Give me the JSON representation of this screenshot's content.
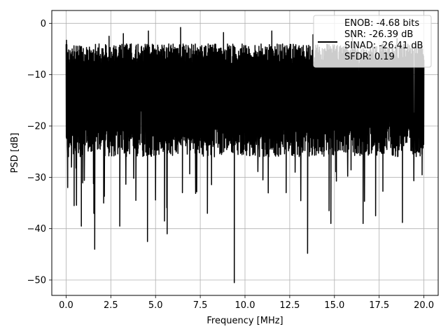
{
  "chart_data": {
    "type": "line",
    "xlabel": "Frequency [MHz]",
    "ylabel": "PSD [dB]",
    "xlim": [
      -0.8,
      20.8
    ],
    "ylim": [
      -53,
      2.5
    ],
    "xticks": [
      0.0,
      2.5,
      5.0,
      7.5,
      10.0,
      12.5,
      15.0,
      17.5,
      20.0
    ],
    "xtick_labels": [
      "0.0",
      "2.5",
      "5.0",
      "7.5",
      "10.0",
      "12.5",
      "15.0",
      "17.5",
      "20.0"
    ],
    "yticks": [
      0,
      -10,
      -20,
      -30,
      -40,
      -50
    ],
    "ytick_labels": [
      "0",
      "−10",
      "−20",
      "−30",
      "−40",
      "−50"
    ],
    "grid": true,
    "legend_position": "top-right",
    "legend_lines": [
      "ENOB: -4.68 bits",
      "SNR: -26.39 dB",
      "SINAD: -26.41 dB",
      "SFDR: 0.19"
    ],
    "series": [
      {
        "color": "#000000",
        "description": "dense noise PSD spectrum, values mostly between -25 and -5 dB",
        "x_range": [
          0.0,
          20.0
        ],
        "band_upper": -4,
        "band_lower": -26,
        "peaks": [
          {
            "x": 0.02,
            "y": -3.3
          },
          {
            "x": 2.4,
            "y": -2.5
          },
          {
            "x": 3.2,
            "y": -2.0
          },
          {
            "x": 4.6,
            "y": -1.5
          },
          {
            "x": 6.4,
            "y": -0.8
          },
          {
            "x": 8.8,
            "y": -1.8
          },
          {
            "x": 11.5,
            "y": -1.5
          },
          {
            "x": 13.8,
            "y": -2.2
          },
          {
            "x": 16.0,
            "y": -2.5
          },
          {
            "x": 18.5,
            "y": -3.0
          }
        ],
        "dips": [
          {
            "x": 0.3,
            "y": -28
          },
          {
            "x": 0.45,
            "y": -35.5
          },
          {
            "x": 0.85,
            "y": -39.5
          },
          {
            "x": 1.55,
            "y": -37
          },
          {
            "x": 1.6,
            "y": -44
          },
          {
            "x": 2.1,
            "y": -35
          },
          {
            "x": 3.0,
            "y": -39.5
          },
          {
            "x": 3.9,
            "y": -34.5
          },
          {
            "x": 4.55,
            "y": -42.5
          },
          {
            "x": 5.5,
            "y": -38.5
          },
          {
            "x": 5.65,
            "y": -41
          },
          {
            "x": 6.5,
            "y": -33
          },
          {
            "x": 7.9,
            "y": -37
          },
          {
            "x": 9.4,
            "y": -50.5
          },
          {
            "x": 11.0,
            "y": -30.5
          },
          {
            "x": 12.3,
            "y": -33
          },
          {
            "x": 12.8,
            "y": -29
          },
          {
            "x": 13.5,
            "y": -44.8
          },
          {
            "x": 14.7,
            "y": -36.5
          },
          {
            "x": 14.8,
            "y": -39
          },
          {
            "x": 16.6,
            "y": -39
          },
          {
            "x": 17.3,
            "y": -37.5
          },
          {
            "x": 18.8,
            "y": -38.8
          },
          {
            "x": 19.9,
            "y": -29.5
          }
        ]
      }
    ]
  }
}
